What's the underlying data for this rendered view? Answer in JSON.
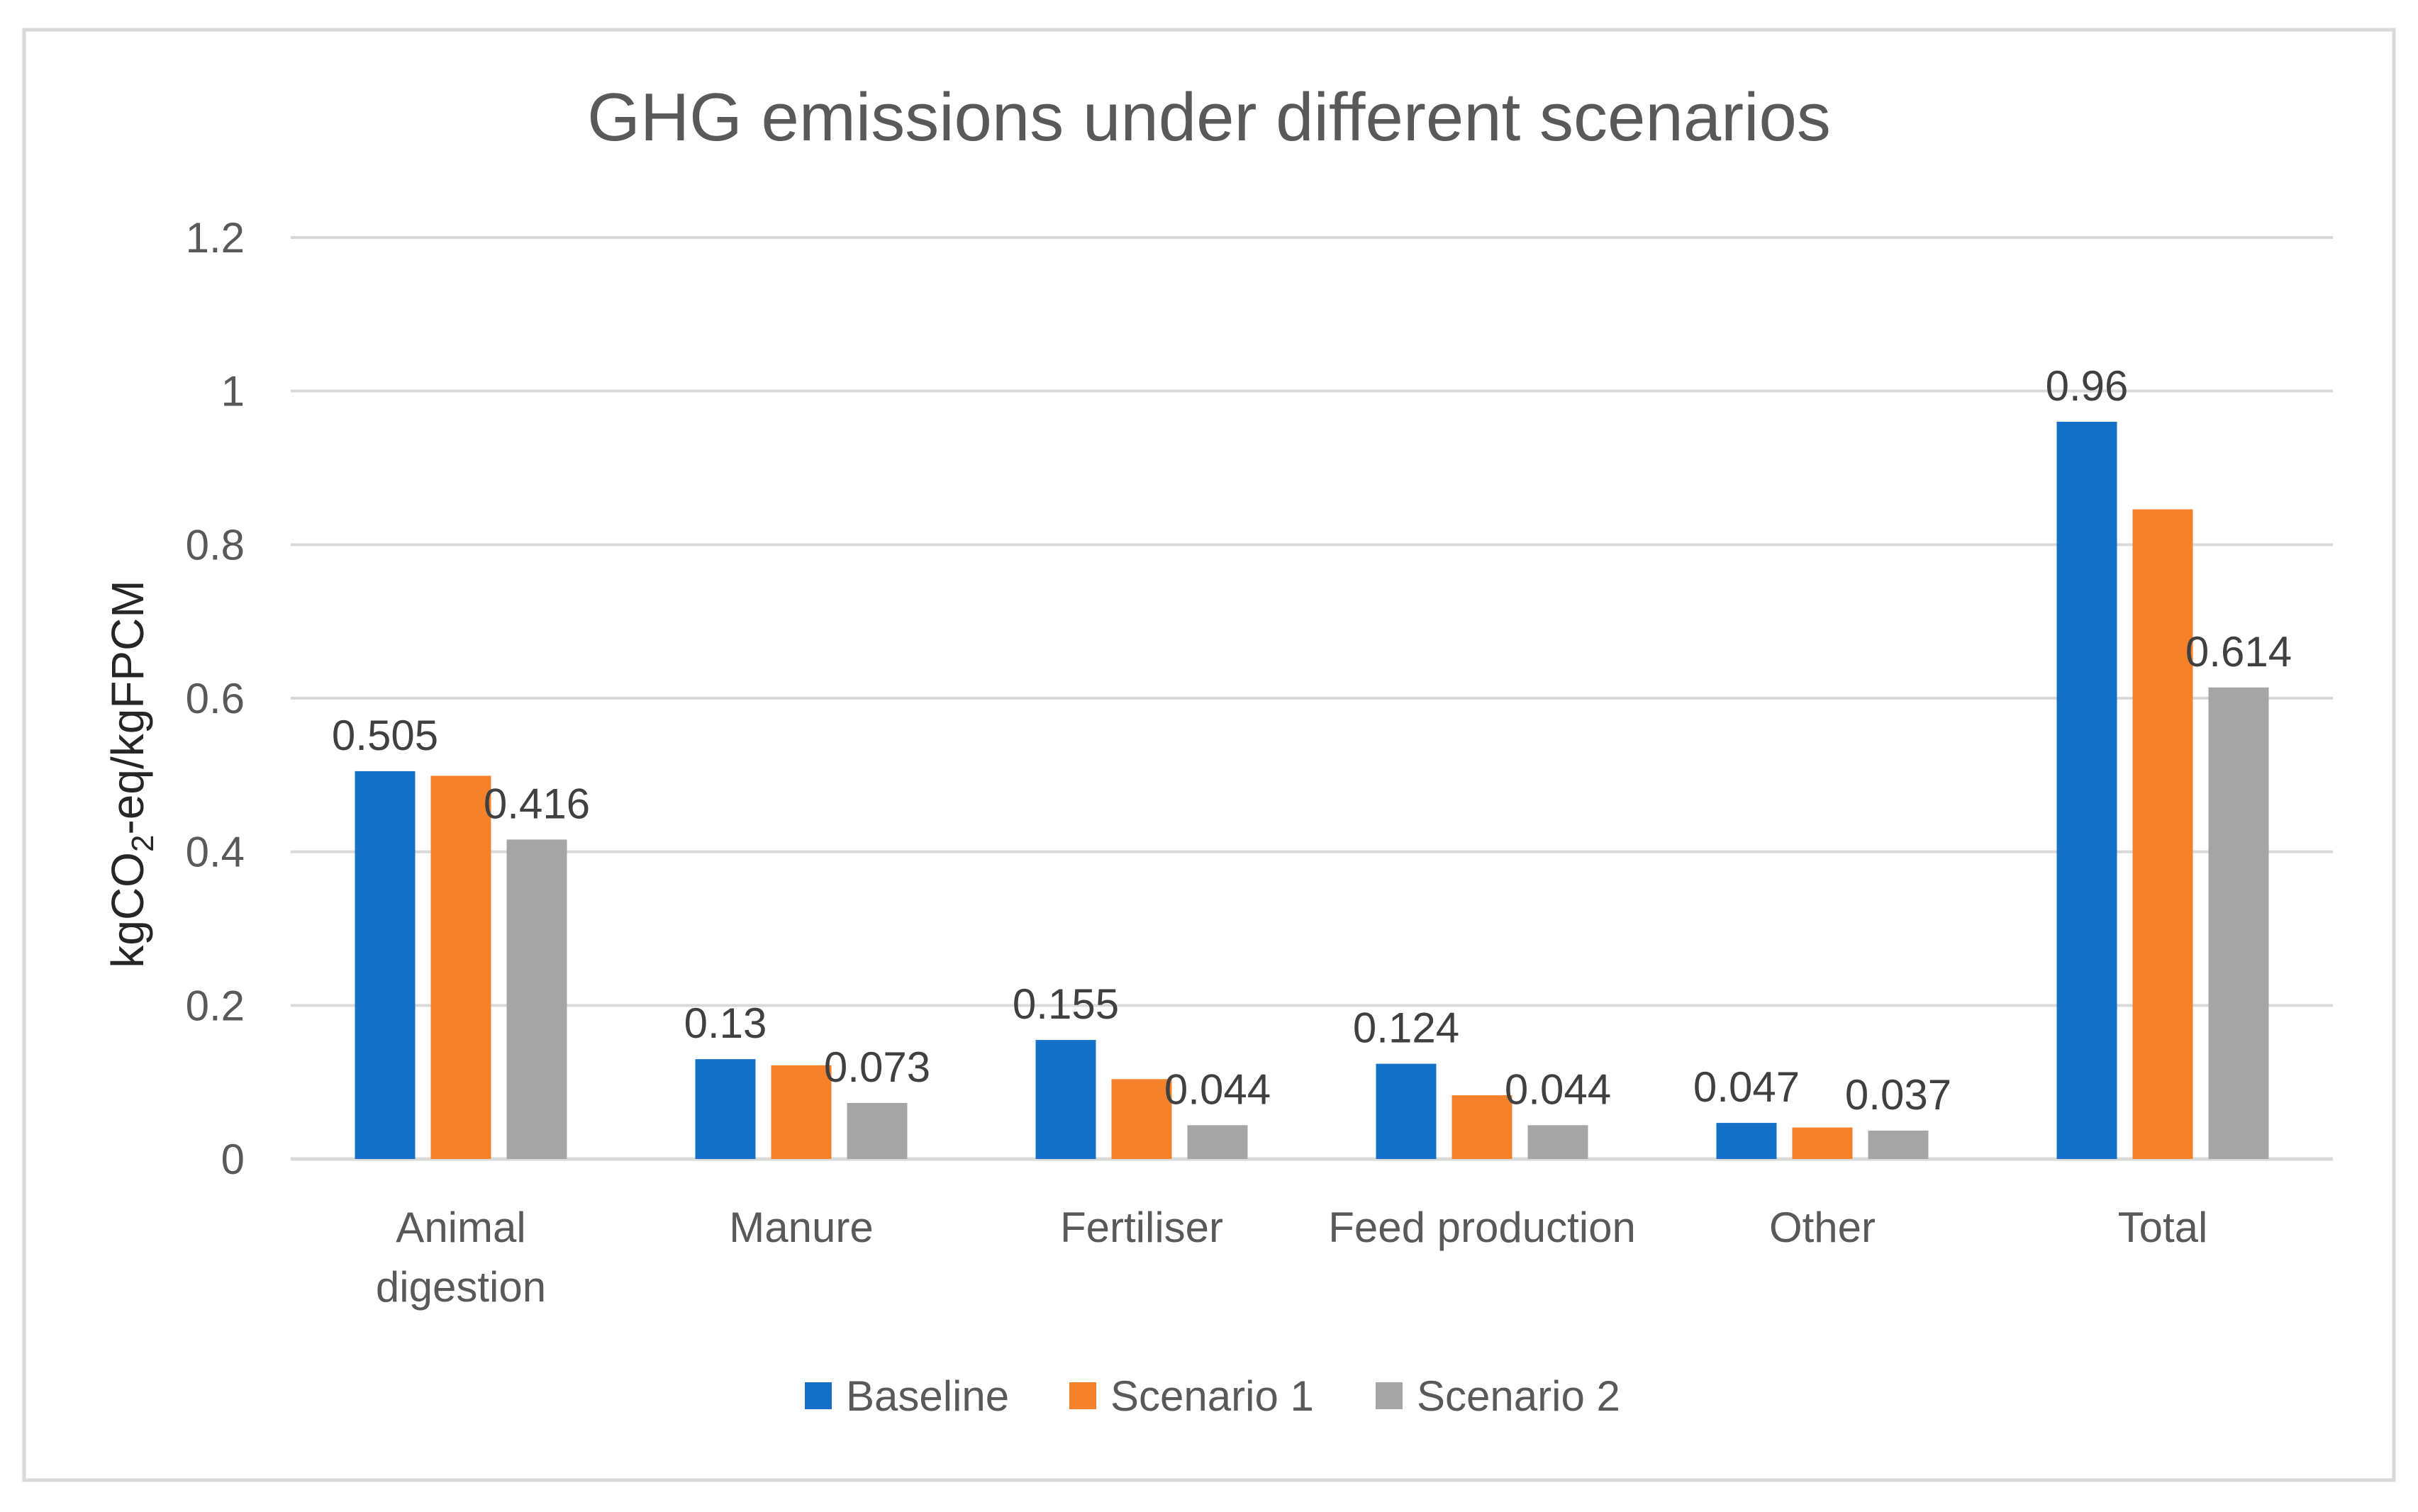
{
  "chart_data": {
    "type": "bar",
    "title": "GHG emissions under different scenarios",
    "xlabel": "",
    "ylabel": {
      "prefix": "kgCO",
      "subscript": "2",
      "suffix": "-eq/kgFPCM"
    },
    "ylim": [
      0,
      1.2
    ],
    "yticks": [
      "0",
      "0.2",
      "0.4",
      "0.6",
      "0.8",
      "1",
      "1.2"
    ],
    "ytick_values": [
      0,
      0.2,
      0.4,
      0.6,
      0.8,
      1.0,
      1.2
    ],
    "grid": true,
    "legend_position": "bottom",
    "categories": [
      [
        "Animal",
        "digestion"
      ],
      [
        "Manure"
      ],
      [
        "Fertiliser"
      ],
      [
        "Feed production"
      ],
      [
        "Other"
      ],
      [
        "Total"
      ]
    ],
    "series": [
      {
        "name": "Baseline",
        "color": "#1570C8",
        "values": [
          0.505,
          0.13,
          0.155,
          0.124,
          0.047,
          0.96
        ],
        "labels": [
          "0.505",
          "0.13",
          "0.155",
          "0.124",
          "0.047",
          "0.96"
        ]
      },
      {
        "name": "Scenario 1",
        "color": "#F5822A",
        "values": [
          0.499,
          0.122,
          0.104,
          0.083,
          0.041,
          0.846
        ],
        "labels": [
          "",
          "",
          "",
          "",
          "",
          ""
        ]
      },
      {
        "name": "Scenario 2",
        "color": "#A5A5A5",
        "values": [
          0.416,
          0.073,
          0.044,
          0.044,
          0.037,
          0.614
        ],
        "labels": [
          "0.416",
          "0.073",
          "0.044",
          "0.044",
          "0.037",
          "0.614"
        ]
      }
    ]
  }
}
